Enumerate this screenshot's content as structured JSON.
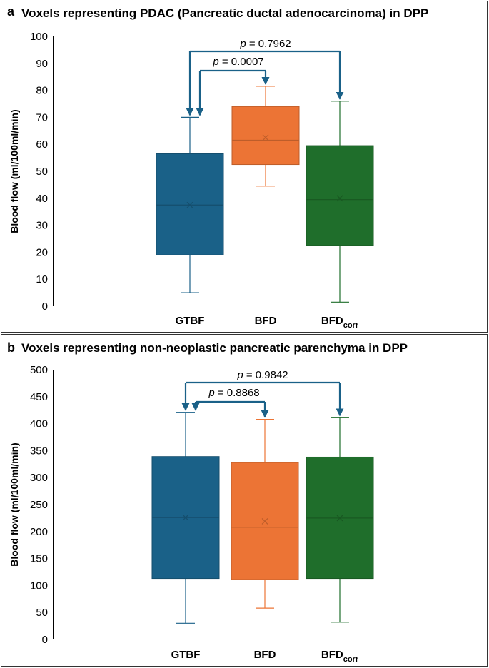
{
  "chart_data": [
    {
      "type": "box",
      "panel_label": "a",
      "title": "Voxels representing PDAC (Pancreatic ductal adenocarcinoma) in DPP",
      "ylabel": "Blood flow (ml/100ml/min)",
      "ylim": [
        0,
        100
      ],
      "yticks": [
        0,
        10,
        20,
        30,
        40,
        50,
        60,
        70,
        80,
        90,
        100
      ],
      "categories": [
        {
          "label": "GTBF",
          "sub": ""
        },
        {
          "label": "BFD",
          "sub": ""
        },
        {
          "label": "BFD",
          "sub": "corr"
        }
      ],
      "boxes": [
        {
          "min": 5,
          "q1": 19,
          "median": 37.5,
          "mean": 37.5,
          "q3": 56.5,
          "max": 70,
          "color": "#1a6188"
        },
        {
          "min": 44.5,
          "q1": 52.5,
          "median": 61.5,
          "mean": 62.5,
          "q3": 74,
          "max": 81.5,
          "color": "#ec7435"
        },
        {
          "min": 1.5,
          "q1": 22.5,
          "median": 39.5,
          "mean": 40,
          "q3": 59.5,
          "max": 76,
          "color": "#1f6e2b"
        }
      ],
      "comparisons": [
        {
          "p_symbol": "p",
          "p_text": " = 0.0007",
          "from": 0,
          "to": 1
        },
        {
          "p_symbol": "p",
          "p_text": " = 0.7962",
          "from": 0,
          "to": 2
        }
      ],
      "bracket_color": "#1a6188"
    },
    {
      "type": "box",
      "panel_label": "b",
      "title": "Voxels representing non-neoplastic pancreatic parenchyma in DPP",
      "ylabel": "Blood flow (ml/100ml/min)",
      "ylim": [
        0,
        500
      ],
      "yticks": [
        0,
        50,
        100,
        150,
        200,
        250,
        300,
        350,
        400,
        450,
        500
      ],
      "categories": [
        {
          "label": "GTBF",
          "sub": ""
        },
        {
          "label": "BFD",
          "sub": ""
        },
        {
          "label": "BFD",
          "sub": "corr"
        }
      ],
      "boxes": [
        {
          "min": 30,
          "q1": 113,
          "median": 226,
          "mean": 226,
          "q3": 339,
          "max": 421,
          "color": "#1a6188"
        },
        {
          "min": 58,
          "q1": 111,
          "median": 208,
          "mean": 219,
          "q3": 328,
          "max": 408,
          "color": "#ec7435"
        },
        {
          "min": 32,
          "q1": 113,
          "median": 225,
          "mean": 225,
          "q3": 338,
          "max": 411,
          "color": "#1f6e2b"
        }
      ],
      "comparisons": [
        {
          "p_symbol": "p",
          "p_text": " = 0.8868",
          "from": 0,
          "to": 1
        },
        {
          "p_symbol": "p",
          "p_text": " = 0.9842",
          "from": 0,
          "to": 2
        }
      ],
      "bracket_color": "#1a6188"
    }
  ]
}
